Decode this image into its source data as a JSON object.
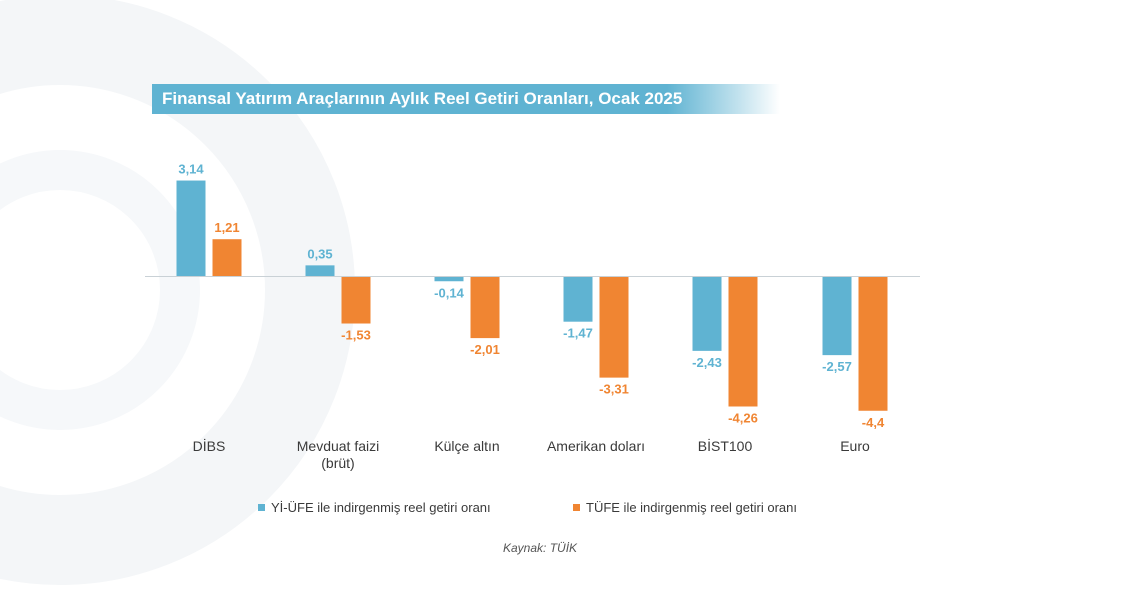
{
  "colors": {
    "series_1": "#5fb3d2",
    "series_2": "#f08532",
    "title_bg": "#5fb3d2",
    "title_text": "#ffffff",
    "axis_line": "#c9d1d6",
    "category_text": "#3a3a3a"
  },
  "source": "Kaynak: TÜİK",
  "chart_data": {
    "type": "bar",
    "title": "Finansal Yatırım Araçlarının Aylık Reel Getiri Oranları, Ocak 2025",
    "categories": [
      "DİBS",
      "Mevduat faizi\n(brüt)",
      "Külçe altın",
      "Amerikan doları",
      "BİST100",
      "Euro"
    ],
    "series": [
      {
        "name": "Yİ-ÜFE ile indirgenmiş reel getiri oranı",
        "values": [
          3.14,
          0.35,
          -0.14,
          -1.47,
          -2.43,
          -2.57
        ],
        "labels": [
          "3,14",
          "0,35",
          "-0,14",
          "-1,47",
          "-2,43",
          "-2,57"
        ]
      },
      {
        "name": "TÜFE ile indirgenmiş reel getiri oranı",
        "values": [
          1.21,
          -1.53,
          -2.01,
          -3.31,
          -4.26,
          -4.4
        ],
        "labels": [
          "1,21",
          "-1,53",
          "-2,01",
          "-3,31",
          "-4,26",
          "-4,4"
        ]
      }
    ],
    "xlabel": "",
    "ylabel": "",
    "ylim": [
      -4.4,
      3.14
    ],
    "grid": false,
    "legend": "bottom"
  }
}
